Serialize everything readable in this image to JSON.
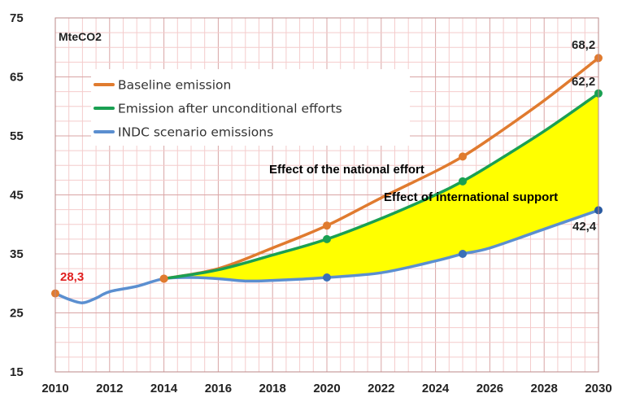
{
  "chart_data": {
    "type": "line",
    "unit_label": "MteCO2",
    "x_ticks": [
      "2010",
      "2012",
      "2014",
      "2016",
      "2018",
      "2020",
      "2022",
      "2024",
      "2026",
      "2028",
      "2030"
    ],
    "y_ticks": [
      "15",
      "25",
      "35",
      "45",
      "55",
      "65",
      "75"
    ],
    "xlim": [
      2010,
      2030
    ],
    "ylim": [
      15,
      75
    ],
    "grid": true,
    "legend_position": "top-left",
    "colors": {
      "baseline": "#e07b2f",
      "unconditional": "#1aa052",
      "indc": "#5b8fd0",
      "fill": "#ffff00",
      "start_label": "#e02020",
      "end_label": "#222222",
      "grid_minor": "#f4cccc",
      "grid_major": "#d8a5a5"
    },
    "series": [
      {
        "key": "baseline",
        "name": "Baseline emission",
        "points": [
          [
            2014,
            30.8
          ],
          [
            2016,
            32.5
          ],
          [
            2018,
            36
          ],
          [
            2020,
            39.8
          ],
          [
            2022,
            44.5
          ],
          [
            2024,
            49
          ],
          [
            2025,
            51.5
          ],
          [
            2026,
            54.5
          ],
          [
            2028,
            61
          ],
          [
            2030,
            68.2
          ]
        ],
        "markers": [
          [
            2014,
            30.8
          ],
          [
            2020,
            39.8
          ],
          [
            2025,
            51.5
          ],
          [
            2030,
            68.2
          ]
        ]
      },
      {
        "key": "unconditional",
        "name": "Emission after unconditional efforts",
        "points": [
          [
            2014,
            30.8
          ],
          [
            2016,
            32.3
          ],
          [
            2018,
            34.8
          ],
          [
            2020,
            37.5
          ],
          [
            2022,
            41
          ],
          [
            2024,
            45
          ],
          [
            2025,
            47.3
          ],
          [
            2026,
            50
          ],
          [
            2028,
            55.8
          ],
          [
            2030,
            62.2
          ]
        ],
        "markers": [
          [
            2020,
            37.5
          ],
          [
            2025,
            47.3
          ],
          [
            2030,
            62.2
          ]
        ]
      },
      {
        "key": "indc",
        "name": "INDC scenario emissions",
        "points": [
          [
            2010,
            28.3
          ],
          [
            2010.5,
            27.3
          ],
          [
            2011,
            26.7
          ],
          [
            2011.5,
            27.5
          ],
          [
            2012,
            28.6
          ],
          [
            2013,
            29.5
          ],
          [
            2014,
            30.8
          ],
          [
            2015,
            31
          ],
          [
            2016,
            30.8
          ],
          [
            2017,
            30.4
          ],
          [
            2018,
            30.5
          ],
          [
            2019,
            30.7
          ],
          [
            2020,
            31
          ],
          [
            2022,
            31.8
          ],
          [
            2024,
            33.8
          ],
          [
            2025,
            35
          ],
          [
            2026,
            36
          ],
          [
            2028,
            39.2
          ],
          [
            2030,
            42.4
          ]
        ],
        "markers": [
          [
            2010,
            28.3
          ],
          [
            2014,
            30.8
          ],
          [
            2020,
            31
          ],
          [
            2025,
            35
          ],
          [
            2030,
            42.4
          ]
        ]
      }
    ],
    "data_labels": {
      "start": "28,3",
      "baseline_end": "68,2",
      "unconditional_end": "62,2",
      "indc_end": "42,4"
    },
    "annotations": {
      "national": "Effect of the national effort",
      "international": "Effect of international support"
    }
  }
}
